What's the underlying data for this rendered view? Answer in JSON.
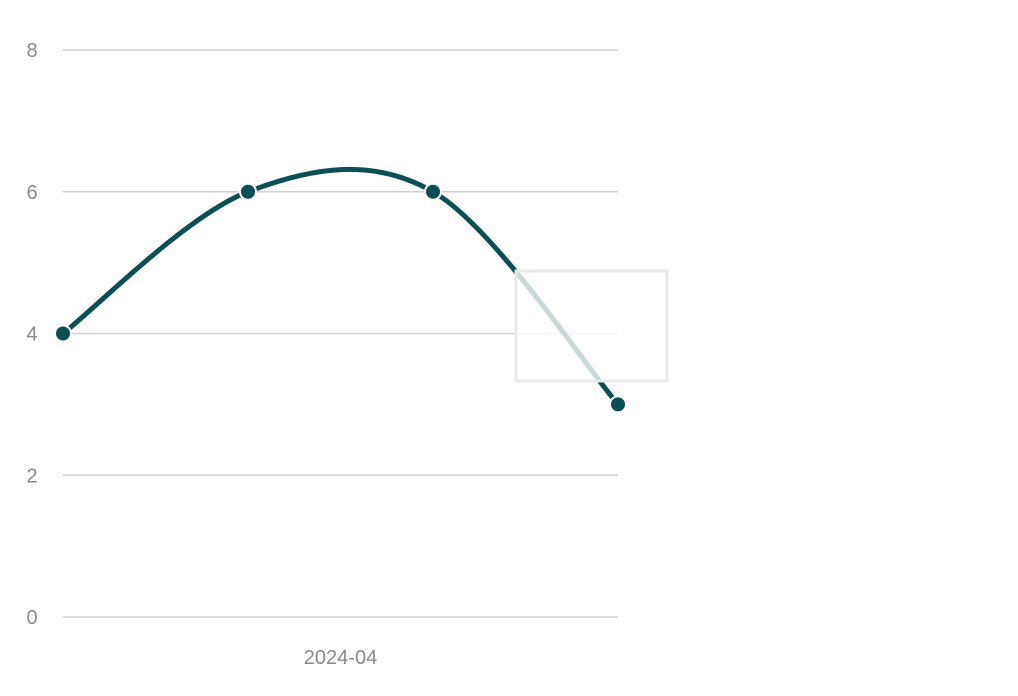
{
  "chart_data": {
    "type": "line",
    "smooth": true,
    "x": [
      1,
      2,
      3,
      4
    ],
    "y_axis": {
      "ticks": [
        0,
        2,
        4,
        6,
        8
      ],
      "tick_labels": [
        "0",
        "2",
        "4",
        "6",
        "8"
      ],
      "ylim": [
        0,
        8
      ]
    },
    "x_axis": {
      "tick_labels": [
        "2024-04"
      ]
    },
    "series": [
      {
        "values": [
          4,
          6,
          6,
          3
        ]
      }
    ],
    "grid": true,
    "legend": "none",
    "colors": {
      "line": "#0b4f55",
      "grid": "#d0d0d0",
      "tick_text": "#8a8a8a"
    }
  }
}
